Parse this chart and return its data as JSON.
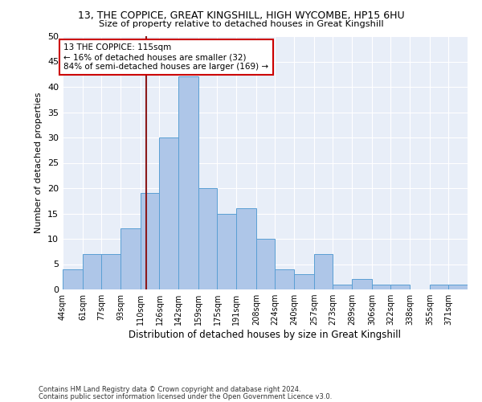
{
  "title1": "13, THE COPPICE, GREAT KINGSHILL, HIGH WYCOMBE, HP15 6HU",
  "title2": "Size of property relative to detached houses in Great Kingshill",
  "xlabel": "Distribution of detached houses by size in Great Kingshill",
  "ylabel": "Number of detached properties",
  "bin_labels": [
    "44sqm",
    "61sqm",
    "77sqm",
    "93sqm",
    "110sqm",
    "126sqm",
    "142sqm",
    "159sqm",
    "175sqm",
    "191sqm",
    "208sqm",
    "224sqm",
    "240sqm",
    "257sqm",
    "273sqm",
    "289sqm",
    "306sqm",
    "322sqm",
    "338sqm",
    "355sqm",
    "371sqm"
  ],
  "bin_edges": [
    44,
    61,
    77,
    93,
    110,
    126,
    142,
    159,
    175,
    191,
    208,
    224,
    240,
    257,
    273,
    289,
    306,
    322,
    338,
    355,
    371,
    387
  ],
  "counts": [
    4,
    7,
    7,
    12,
    19,
    30,
    42,
    20,
    15,
    16,
    10,
    4,
    3,
    7,
    1,
    2,
    1,
    1,
    0,
    1,
    1
  ],
  "bar_color": "#aec6e8",
  "bar_edge_color": "#5a9fd4",
  "property_size": 115,
  "annotation_line1": "13 THE COPPICE: 115sqm",
  "annotation_line2": "← 16% of detached houses are smaller (32)",
  "annotation_line3": "84% of semi-detached houses are larger (169) →",
  "vline_color": "#8b1a1a",
  "annotation_box_color": "#ffffff",
  "annotation_box_edge": "#cc0000",
  "footnote1": "Contains HM Land Registry data © Crown copyright and database right 2024.",
  "footnote2": "Contains public sector information licensed under the Open Government Licence v3.0.",
  "ylim": [
    0,
    50
  ],
  "yticks": [
    0,
    5,
    10,
    15,
    20,
    25,
    30,
    35,
    40,
    45,
    50
  ],
  "background_color": "#e8eef8"
}
